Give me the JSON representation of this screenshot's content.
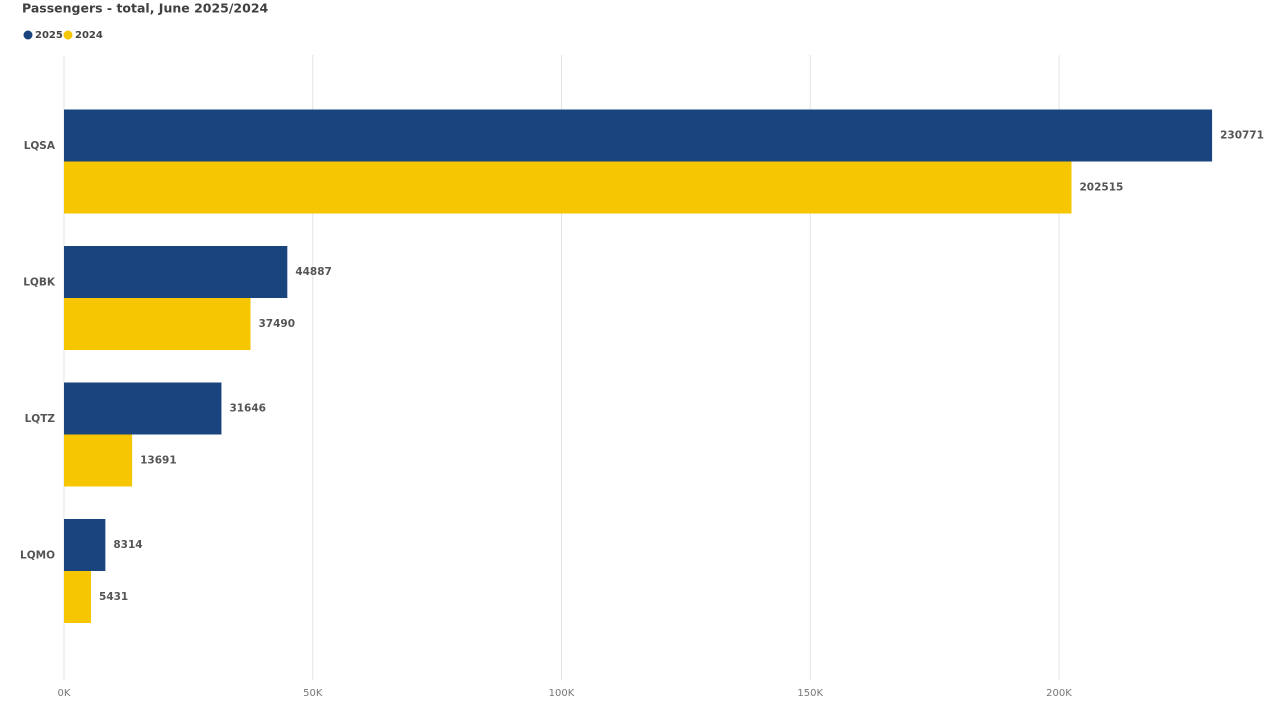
{
  "chart_data": {
    "type": "bar",
    "orientation": "horizontal",
    "title": "Passengers - total, June 2025/2024",
    "categories": [
      "LQSA",
      "LQBK",
      "LQTZ",
      "LQMO"
    ],
    "series": [
      {
        "name": "2025",
        "color": "#1a447e",
        "values": [
          230771,
          44887,
          31646,
          8314
        ]
      },
      {
        "name": "2024",
        "color": "#f6c602",
        "values": [
          202515,
          37490,
          13691,
          5431
        ]
      }
    ],
    "xlim": [
      0,
      240000
    ],
    "xticks": [
      {
        "value": 0,
        "label": "0K"
      },
      {
        "value": 50000,
        "label": "50K"
      },
      {
        "value": 100000,
        "label": "100K"
      },
      {
        "value": 150000,
        "label": "150K"
      },
      {
        "value": 200000,
        "label": "200K"
      }
    ],
    "grid": true,
    "legend": "top-left"
  }
}
